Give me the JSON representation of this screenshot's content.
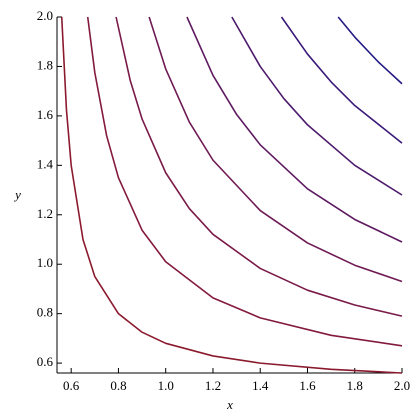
{
  "chart_data": {
    "type": "line",
    "x_label": "x",
    "y_label": "y",
    "xlim": [
      0.54,
      2.0
    ],
    "ylim": [
      0.56,
      2.0
    ],
    "xticks": [
      0.6,
      0.8,
      {
        "value": 1,
        "label": "1.0"
      },
      1.2,
      1.4,
      1.6,
      1.8,
      {
        "value": 2,
        "label": "2.0"
      }
    ],
    "yticks": [
      0.6,
      0.8,
      {
        "value": 1,
        "label": "1.0"
      },
      1.2,
      1.4,
      1.6,
      1.8,
      {
        "value": 2,
        "label": "2.0"
      }
    ],
    "series": [
      {
        "color": "#8b1a2e",
        "x": [
          0.56,
          0.58,
          0.6,
          0.65,
          0.7,
          0.8,
          0.9,
          1.0,
          1.2,
          1.4,
          1.7,
          2.0
        ],
        "y": [
          2.0,
          1.625,
          1.4,
          1.1,
          0.95,
          0.8,
          0.725,
          0.68,
          0.629,
          0.6,
          0.575,
          0.56
        ]
      },
      {
        "color": "#831a3c",
        "x": [
          0.67,
          0.7,
          0.75,
          0.8,
          0.9,
          1.0,
          1.2,
          1.4,
          1.7,
          2.0
        ],
        "y": [
          2.0,
          1.775,
          1.52,
          1.35,
          1.1375,
          1.01,
          0.864,
          0.783,
          0.7125,
          0.67
        ]
      },
      {
        "color": "#7a1a48",
        "x": [
          0.79,
          0.85,
          0.9,
          1.0,
          1.1,
          1.2,
          1.4,
          1.6,
          1.8,
          2.0
        ],
        "y": [
          2.0,
          1.743,
          1.5875,
          1.37,
          1.225,
          1.121,
          0.983,
          0.895,
          0.835,
          0.79
        ]
      },
      {
        "color": "#6e1a54",
        "x": [
          0.93,
          1.0,
          1.1,
          1.2,
          1.4,
          1.6,
          1.8,
          2.0
        ],
        "y": [
          2.0,
          1.79,
          1.575,
          1.421,
          1.217,
          1.086,
          0.996,
          0.93
        ]
      },
      {
        "color": "#5e1a60",
        "x": [
          1.09,
          1.2,
          1.3,
          1.4,
          1.6,
          1.8,
          2.0
        ],
        "y": [
          2.0,
          1.764,
          1.606,
          1.483,
          1.305,
          1.181,
          1.09
        ]
      },
      {
        "color": "#4c1a6c",
        "x": [
          1.28,
          1.4,
          1.5,
          1.6,
          1.8,
          2.0
        ],
        "y": [
          2.0,
          1.8,
          1.67,
          1.564,
          1.4,
          1.28
        ]
      },
      {
        "color": "#3a1a78",
        "x": [
          1.49,
          1.6,
          1.7,
          1.8,
          2.0
        ],
        "y": [
          2.0,
          1.85,
          1.7375,
          1.642,
          1.49
        ]
      },
      {
        "color": "#241a84",
        "x": [
          1.73,
          1.8,
          1.9,
          2.0
        ],
        "y": [
          2.0,
          1.919,
          1.818,
          1.73
        ]
      }
    ]
  }
}
